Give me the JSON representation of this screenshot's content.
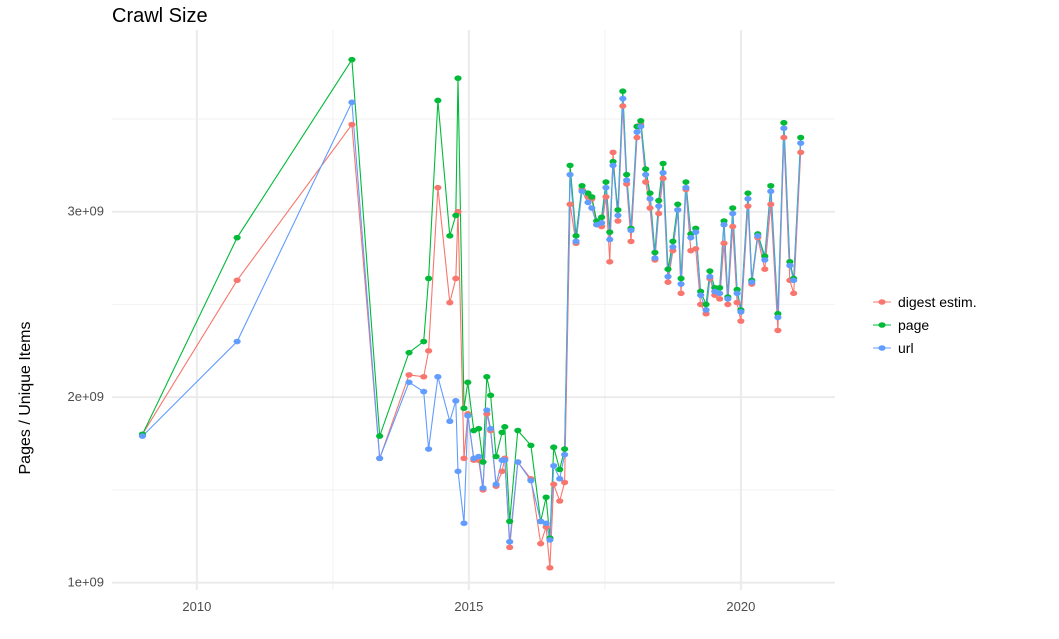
{
  "chart_data": {
    "type": "line",
    "title": "Crawl Size",
    "xlabel": "",
    "ylabel": "Pages / Unique Items",
    "xlim": [
      2008.44,
      2021.73
    ],
    "ylim": [
      960000000.0,
      3980000000.0
    ],
    "x_ticks": [
      2010,
      2015,
      2020
    ],
    "x_tick_labels": [
      "2010",
      "2015",
      "2020"
    ],
    "y_ticks": [
      1000000000.0,
      2000000000.0,
      3000000000.0
    ],
    "y_tick_labels": [
      "1e+09",
      "2e+09",
      "3e+09"
    ],
    "grid": true,
    "legend_position": "right",
    "markers": true,
    "x": [
      2009.0,
      2010.74,
      2012.85,
      2013.36,
      2013.9,
      2014.17,
      2014.26,
      2014.43,
      2014.65,
      2014.76,
      2014.8,
      2014.91,
      2014.98,
      2015.09,
      2015.18,
      2015.26,
      2015.33,
      2015.4,
      2015.5,
      2015.61,
      2015.66,
      2015.75,
      2015.9,
      2016.14,
      2016.32,
      2016.42,
      2016.49,
      2016.56,
      2016.67,
      2016.76,
      2016.86,
      2016.97,
      2017.08,
      2017.19,
      2017.26,
      2017.35,
      2017.44,
      2017.52,
      2017.59,
      2017.65,
      2017.74,
      2017.83,
      2017.9,
      2017.98,
      2018.09,
      2018.16,
      2018.25,
      2018.33,
      2018.42,
      2018.49,
      2018.57,
      2018.66,
      2018.75,
      2018.84,
      2018.9,
      2018.99,
      2019.08,
      2019.17,
      2019.26,
      2019.36,
      2019.43,
      2019.52,
      2019.61,
      2019.69,
      2019.76,
      2019.85,
      2019.93,
      2020.0,
      2020.13,
      2020.2,
      2020.31,
      2020.44,
      2020.55,
      2020.68,
      2020.79,
      2020.9,
      2020.97,
      2021.1
    ],
    "series": [
      {
        "name": "digest estim.",
        "color": "#F8766D",
        "values": [
          1.8,
          2.63,
          3.47,
          1.67,
          2.12,
          2.11,
          2.25,
          3.13,
          2.51,
          2.64,
          3.0,
          1.67,
          1.91,
          1.66,
          1.66,
          1.5,
          1.91,
          1.82,
          1.52,
          1.6,
          1.67,
          1.19,
          1.65,
          1.56,
          1.21,
          1.3,
          1.08,
          1.53,
          1.44,
          1.54,
          3.04,
          2.83,
          3.12,
          3.08,
          3.07,
          2.93,
          2.92,
          3.08,
          2.73,
          3.32,
          2.95,
          3.57,
          3.15,
          2.84,
          3.4,
          3.47,
          3.16,
          3.02,
          2.74,
          2.99,
          3.18,
          2.62,
          2.79,
          3.01,
          2.56,
          3.12,
          2.79,
          2.8,
          2.5,
          2.45,
          2.64,
          2.55,
          2.53,
          2.83,
          2.5,
          2.92,
          2.51,
          2.41,
          3.03,
          2.61,
          2.86,
          2.69,
          3.04,
          2.36,
          3.4,
          2.63,
          2.56,
          3.32
        ]
      },
      {
        "name": "page",
        "color": "#00BA38",
        "values": [
          1.8,
          2.86,
          3.82,
          1.79,
          2.24,
          2.3,
          2.64,
          3.6,
          2.87,
          2.98,
          3.72,
          1.94,
          2.08,
          1.82,
          1.83,
          1.65,
          2.11,
          2.01,
          1.68,
          1.81,
          1.84,
          1.33,
          1.82,
          1.74,
          1.33,
          1.46,
          1.24,
          1.73,
          1.61,
          1.72,
          3.25,
          2.87,
          3.14,
          3.1,
          3.08,
          2.95,
          2.97,
          3.16,
          2.89,
          3.27,
          3.01,
          3.65,
          3.2,
          2.91,
          3.46,
          3.49,
          3.23,
          3.1,
          2.78,
          3.06,
          3.26,
          2.69,
          2.84,
          3.04,
          2.64,
          3.16,
          2.88,
          2.91,
          2.57,
          2.5,
          2.68,
          2.59,
          2.59,
          2.95,
          2.54,
          3.02,
          2.58,
          2.47,
          3.1,
          2.63,
          2.88,
          2.76,
          3.14,
          2.45,
          3.48,
          2.73,
          2.64,
          3.4
        ]
      },
      {
        "name": "url",
        "color": "#619CFF",
        "values": [
          1.79,
          2.3,
          3.59,
          1.67,
          2.08,
          2.03,
          1.72,
          2.11,
          1.87,
          1.98,
          1.6,
          1.32,
          1.9,
          1.67,
          1.68,
          1.51,
          1.93,
          1.83,
          1.53,
          1.66,
          1.66,
          1.22,
          1.65,
          1.55,
          1.33,
          1.32,
          1.23,
          1.63,
          1.56,
          1.69,
          3.2,
          2.84,
          3.11,
          3.05,
          3.02,
          2.93,
          2.94,
          3.13,
          2.85,
          3.25,
          2.98,
          3.61,
          3.17,
          2.9,
          3.43,
          3.46,
          3.2,
          3.07,
          2.75,
          3.03,
          3.21,
          2.65,
          2.81,
          3.01,
          2.61,
          3.13,
          2.86,
          2.89,
          2.55,
          2.47,
          2.65,
          2.57,
          2.56,
          2.93,
          2.53,
          2.99,
          2.56,
          2.46,
          3.07,
          2.62,
          2.87,
          2.74,
          3.11,
          2.43,
          3.45,
          2.71,
          2.63,
          3.37
        ]
      }
    ],
    "value_unit_multiplier": 1000000000.0
  }
}
